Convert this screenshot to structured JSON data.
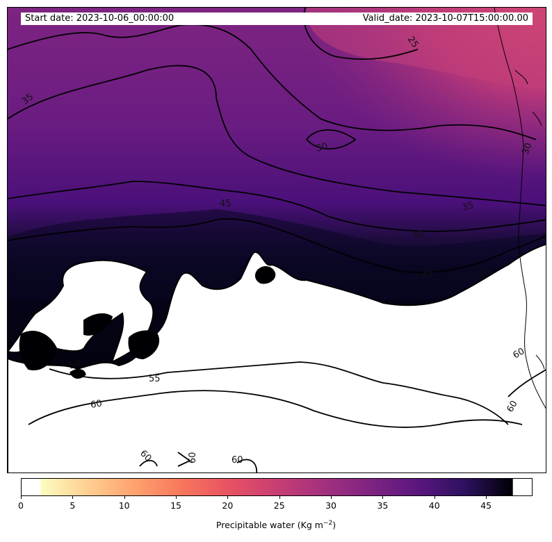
{
  "header": {
    "start_date": "Start date: 2023-10-06_00:00:00",
    "valid_date": "Valid_date: 2023-10-07T15:00:00.00"
  },
  "map": {
    "variable": "Precipitable water",
    "colormap": "magma_r",
    "contour_labels": [
      "25",
      "30",
      "30",
      "35",
      "35",
      "40",
      "45",
      "45",
      "50",
      "50",
      "55",
      "60",
      "60",
      "60",
      "60",
      "60",
      "60"
    ]
  },
  "colorbar": {
    "min": 0,
    "max": 49.5,
    "ticks": [
      "0",
      "5",
      "10",
      "15",
      "20",
      "25",
      "30",
      "35",
      "40",
      "45"
    ],
    "label_text": "Precipitable water (Kg m",
    "label_sup": "−2",
    "label_close": ")"
  },
  "colors": {
    "cmap_low": "#fcfdbf",
    "cmap_mid": "#f1605d",
    "cmap_high": "#000004",
    "saturated": "#ffffff"
  }
}
